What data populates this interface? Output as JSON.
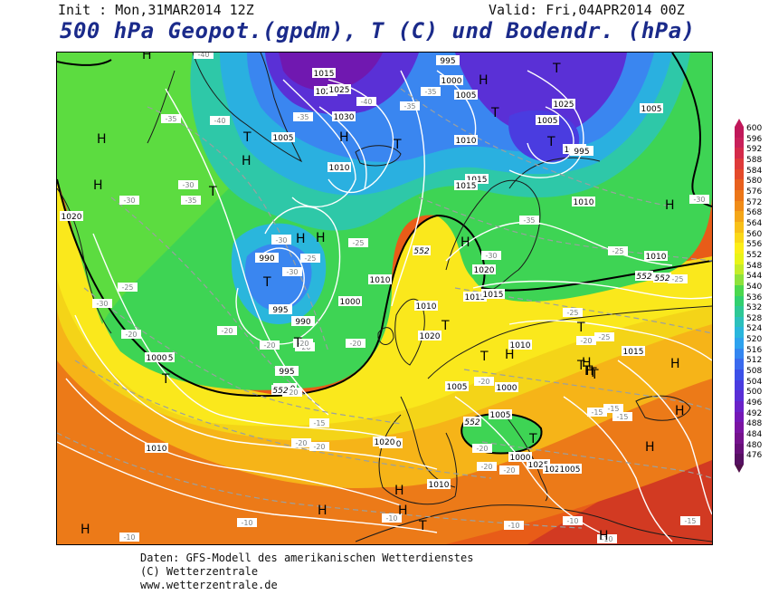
{
  "header": {
    "init": "Init : Mon,31MAR2014 12Z",
    "valid": "Valid: Fri,04APR2014 00Z",
    "title": "500 hPa Geopot.(gpdm), T (C) und Bodendr. (hPa)"
  },
  "footer": {
    "line1": "Daten: GFS-Modell des amerikanischen Wetterdienstes",
    "line2": "(C) Wetterzentrale",
    "line3": "www.wetterzentrale.de"
  },
  "colorbar": {
    "labels": [
      "600",
      "596",
      "592",
      "588",
      "584",
      "580",
      "576",
      "572",
      "568",
      "564",
      "560",
      "556",
      "552",
      "548",
      "544",
      "540",
      "536",
      "532",
      "528",
      "524",
      "520",
      "516",
      "512",
      "508",
      "504",
      "500",
      "496",
      "492",
      "488",
      "484",
      "480",
      "476"
    ],
    "colors": [
      "#c0185a",
      "#c8205a",
      "#d42a4a",
      "#de3a3a",
      "#e44a2a",
      "#e8601e",
      "#ec7618",
      "#f08c18",
      "#f4a618",
      "#f8c018",
      "#fad818",
      "#fcee18",
      "#e8f418",
      "#c4ec2a",
      "#8ee23c",
      "#4cd84e",
      "#32d070",
      "#2ec896",
      "#2cc0bc",
      "#2ab6dc",
      "#2ea2ee",
      "#3486f0",
      "#3a6aee",
      "#3c50e8",
      "#4a3ce0",
      "#5a2ed6",
      "#6a22c8",
      "#7418b6",
      "#7a14a2",
      "#74128c",
      "#661078",
      "#561062"
    ]
  },
  "map": {
    "pressure_labels": [
      "1015",
      "1020",
      "1025",
      "1030",
      "1005",
      "995",
      "1000",
      "1005",
      "1010",
      "1010",
      "1015",
      "1025",
      "1005",
      "1000",
      "995",
      "1020",
      "1010",
      "990",
      "995",
      "1000",
      "990",
      "995",
      "1000",
      "1005",
      "1000",
      "1010",
      "1015",
      "1010",
      "1020",
      "1015",
      "1010",
      "1020",
      "1005",
      "1000",
      "1005",
      "1010",
      "1020",
      "1020",
      "1025",
      "1020",
      "1010",
      "1000",
      "1005",
      "1015",
      "1010",
      "1015",
      "1005",
      "1010"
    ],
    "temp_labels": [
      "-40",
      "-40",
      "-35",
      "-35",
      "-40",
      "-35",
      "-35",
      "-30",
      "-25",
      "-30",
      "-30",
      "-25",
      "-35",
      "-30",
      "-25",
      "-25",
      "-25",
      "-30",
      "-35",
      "-30",
      "-25",
      "-20",
      "-20",
      "-20",
      "-20",
      "-20",
      "-20",
      "-20",
      "-20",
      "-25",
      "-20",
      "-15",
      "-15",
      "-15",
      "-20",
      "-20",
      "-15",
      "-20",
      "-10",
      "-10",
      "-10",
      "-10",
      "-10",
      "-10",
      "-15",
      "-20",
      "-20",
      "-30",
      "-30"
    ],
    "gpdm_labels": [
      "552",
      "552",
      "552",
      "552",
      "552"
    ],
    "highs": [
      "H",
      "H",
      "H",
      "H",
      "H",
      "H",
      "H",
      "H",
      "H",
      "H",
      "H",
      "H",
      "H",
      "H",
      "H",
      "H",
      "H",
      "H",
      "H",
      "H",
      "H"
    ],
    "lows": [
      "T",
      "T",
      "T",
      "T",
      "T",
      "T",
      "T",
      "T",
      "T",
      "T",
      "T",
      "T",
      "T",
      "T",
      "T",
      "T",
      "T",
      "T"
    ]
  }
}
